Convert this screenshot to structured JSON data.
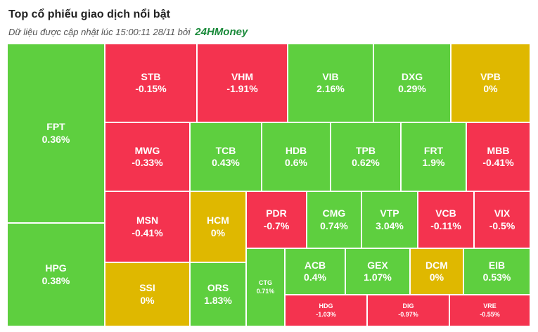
{
  "header": {
    "title": "Top cổ phiếu giao dịch nổi bật",
    "subtitle": "Dữ liệu được cập nhật lúc 15:00:11 28/11 bởi",
    "brand": "24HMoney"
  },
  "colors": {
    "up": "#5ecf3f",
    "down": "#f4334f",
    "flat": "#dfb800"
  },
  "tiles": [
    {
      "symbol": "FPT",
      "change": "0.36%",
      "dir": "up"
    },
    {
      "symbol": "HPG",
      "change": "0.38%",
      "dir": "up"
    },
    {
      "symbol": "STB",
      "change": "-0.15%",
      "dir": "down"
    },
    {
      "symbol": "VHM",
      "change": "-1.91%",
      "dir": "down"
    },
    {
      "symbol": "VIB",
      "change": "2.16%",
      "dir": "up"
    },
    {
      "symbol": "DXG",
      "change": "0.29%",
      "dir": "up"
    },
    {
      "symbol": "VPB",
      "change": "0%",
      "dir": "flat"
    },
    {
      "symbol": "MWG",
      "change": "-0.33%",
      "dir": "down"
    },
    {
      "symbol": "TCB",
      "change": "0.43%",
      "dir": "up"
    },
    {
      "symbol": "HDB",
      "change": "0.6%",
      "dir": "up"
    },
    {
      "symbol": "TPB",
      "change": "0.62%",
      "dir": "up"
    },
    {
      "symbol": "FRT",
      "change": "1.9%",
      "dir": "up"
    },
    {
      "symbol": "MBB",
      "change": "-0.41%",
      "dir": "down"
    },
    {
      "symbol": "MSN",
      "change": "-0.41%",
      "dir": "down"
    },
    {
      "symbol": "HCM",
      "change": "0%",
      "dir": "flat"
    },
    {
      "symbol": "PDR",
      "change": "-0.7%",
      "dir": "down"
    },
    {
      "symbol": "CMG",
      "change": "0.74%",
      "dir": "up"
    },
    {
      "symbol": "VTP",
      "change": "3.04%",
      "dir": "up"
    },
    {
      "symbol": "VCB",
      "change": "-0.11%",
      "dir": "down"
    },
    {
      "symbol": "VIX",
      "change": "-0.5%",
      "dir": "down"
    },
    {
      "symbol": "SSI",
      "change": "0%",
      "dir": "flat"
    },
    {
      "symbol": "ORS",
      "change": "1.83%",
      "dir": "up"
    },
    {
      "symbol": "CTG",
      "change": "0.71%",
      "dir": "up"
    },
    {
      "symbol": "ACB",
      "change": "0.4%",
      "dir": "up"
    },
    {
      "symbol": "GEX",
      "change": "1.07%",
      "dir": "up"
    },
    {
      "symbol": "DCM",
      "change": "0%",
      "dir": "flat"
    },
    {
      "symbol": "EIB",
      "change": "0.53%",
      "dir": "up"
    },
    {
      "symbol": "HDG",
      "change": "-1.03%",
      "dir": "down"
    },
    {
      "symbol": "DIG",
      "change": "-0.97%",
      "dir": "down"
    },
    {
      "symbol": "VRE",
      "change": "-0.55%",
      "dir": "down"
    }
  ]
}
